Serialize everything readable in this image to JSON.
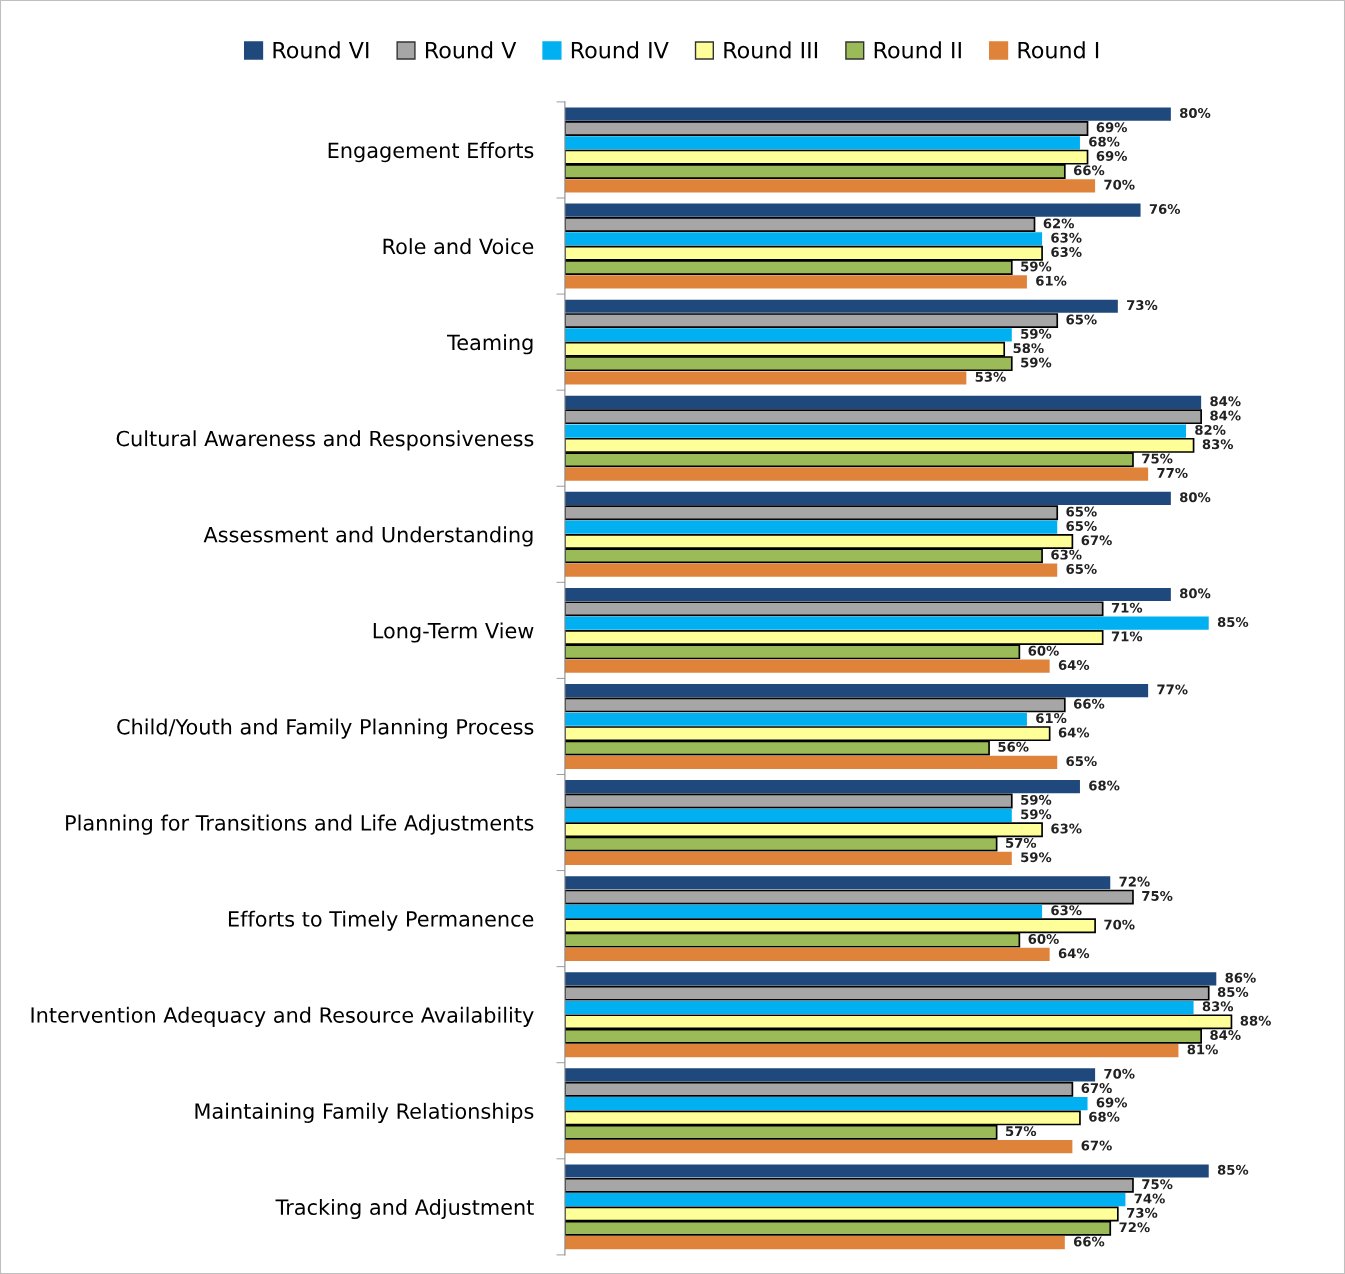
{
  "chart_data": {
    "type": "bar",
    "orientation": "horizontal",
    "legend": "top",
    "grid": false,
    "categories": [
      "Engagement Efforts",
      "Role and Voice",
      "Teaming",
      "Cultural Awareness and Responsiveness",
      "Assessment and Understanding",
      "Long-Term View",
      "Child/Youth and Family Planning Process",
      "Planning for Transitions and Life Adjustments",
      "Efforts to Timely Permanence",
      "Intervention Adequacy and Resource Availability",
      "Maintaining Family Relationships",
      "Tracking and Adjustment"
    ],
    "series": [
      {
        "name": "Round VI",
        "color": "#1f497d",
        "values": [
          80,
          76,
          73,
          84,
          80,
          80,
          77,
          68,
          72,
          86,
          70,
          85
        ],
        "value_labels": [
          "80%",
          "76%",
          "73%",
          "84%",
          "80%",
          "80%",
          "77%",
          "68%",
          "72%",
          "86%",
          "70%",
          "85%"
        ]
      },
      {
        "name": "Round V",
        "color": "#a6a6a6",
        "values": [
          69,
          62,
          65,
          84,
          65,
          71,
          66,
          59,
          75,
          85,
          67,
          75
        ],
        "value_labels": [
          "69%",
          "62%",
          "65%",
          "84%",
          "65%",
          "71%",
          "66%",
          "59%",
          "75%",
          "85%",
          "67%",
          "75%"
        ]
      },
      {
        "name": "Round IV",
        "color": "#00b0f0",
        "values": [
          68,
          63,
          59,
          82,
          65,
          85,
          61,
          59,
          63,
          83,
          69,
          74
        ],
        "value_labels": [
          "68%",
          "63%",
          "59%",
          "82%",
          "65%",
          "85%",
          "61%",
          "59%",
          "63%",
          "83%",
          "69%",
          "74%"
        ]
      },
      {
        "name": "Round III",
        "color": "#ffff99",
        "values": [
          69,
          63,
          58,
          83,
          67,
          71,
          64,
          63,
          70,
          88,
          68,
          73
        ],
        "value_labels": [
          "69%",
          "63%",
          "58%",
          "83%",
          "67%",
          "71%",
          "64%",
          "63%",
          "70%",
          "88%",
          "68%",
          "73%"
        ]
      },
      {
        "name": "Round II",
        "color": "#9bbb59",
        "values": [
          66,
          59,
          59,
          75,
          63,
          60,
          56,
          57,
          60,
          84,
          57,
          72
        ],
        "value_labels": [
          "66%",
          "59%",
          "59%",
          "75%",
          "63%",
          "60%",
          "56%",
          "57%",
          "60%",
          "84%",
          "57%",
          "72%"
        ]
      },
      {
        "name": "Round I",
        "color": "#e0833a",
        "values": [
          70,
          61,
          53,
          77,
          65,
          64,
          65,
          59,
          64,
          81,
          67,
          66
        ],
        "value_labels": [
          "70%",
          "61%",
          "53%",
          "77%",
          "65%",
          "64%",
          "65%",
          "59%",
          "64%",
          "81%",
          "67%",
          "66%"
        ]
      }
    ]
  }
}
